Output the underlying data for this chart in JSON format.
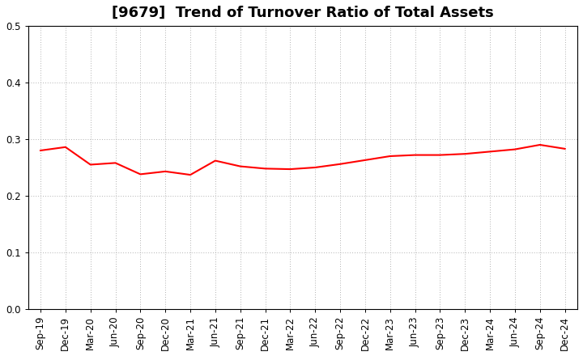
{
  "title": "[9679]  Trend of Turnover Ratio of Total Assets",
  "x_labels": [
    "Sep-19",
    "Dec-19",
    "Mar-20",
    "Jun-20",
    "Sep-20",
    "Dec-20",
    "Mar-21",
    "Jun-21",
    "Sep-21",
    "Dec-21",
    "Mar-22",
    "Jun-22",
    "Sep-22",
    "Dec-22",
    "Mar-23",
    "Jun-23",
    "Sep-23",
    "Dec-23",
    "Mar-24",
    "Jun-24",
    "Sep-24",
    "Dec-24"
  ],
  "y_values": [
    0.28,
    0.286,
    0.255,
    0.258,
    0.238,
    0.243,
    0.237,
    0.262,
    0.252,
    0.248,
    0.247,
    0.25,
    0.256,
    0.263,
    0.27,
    0.272,
    0.272,
    0.274,
    0.278,
    0.282,
    0.29,
    0.283
  ],
  "line_color": "#FF0000",
  "line_width": 1.5,
  "background_color": "#ffffff",
  "plot_bg_color": "#ffffff",
  "grid_color": "#aaaaaa",
  "ylim": [
    0.0,
    0.5
  ],
  "yticks": [
    0.0,
    0.1,
    0.2,
    0.3,
    0.4,
    0.5
  ],
  "title_fontsize": 13,
  "tick_fontsize": 8.5
}
